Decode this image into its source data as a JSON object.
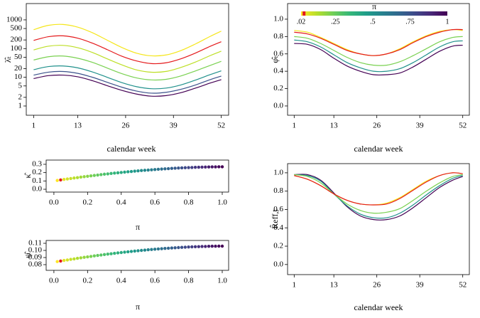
{
  "chart_data": [
    {
      "type": "line",
      "ylabel": "λ̂ₜ",
      "xlabel": "calendar week",
      "log": true,
      "x": [
        1,
        5,
        9,
        13,
        17,
        21,
        25,
        29,
        33,
        37,
        41,
        45,
        49,
        52
      ],
      "xlim": [
        -1,
        54
      ],
      "xticks": [
        1,
        13,
        26,
        39,
        52
      ],
      "ylim": [
        0.476,
        3700
      ],
      "yticks": [
        1,
        2,
        5,
        10,
        20,
        50,
        100,
        200,
        500,
        1000
      ],
      "series": [
        {
          "name": "0.02",
          "color": "#f5e61c",
          "values": [
            456,
            644,
            693,
            558,
            355,
            196,
            109,
            69,
            56,
            60,
            85,
            145,
            266,
            405
          ]
        },
        {
          "name": "0.04",
          "color": "#e41a1c",
          "values": [
            192,
            260,
            278,
            230,
            154,
            92,
            54,
            37,
            30,
            32,
            44,
            70,
            120,
            173
          ]
        },
        {
          "name": "0.1",
          "color": "#bddf26",
          "values": [
            90,
            121,
            129,
            107,
            73,
            44,
            27,
            18,
            15,
            16,
            22,
            34,
            57,
            81
          ]
        },
        {
          "name": "0.25",
          "color": "#7ad151",
          "values": [
            40,
            52,
            55,
            46,
            33,
            21,
            13.4,
            9.5,
            8.1,
            8.5,
            11.1,
            16.7,
            26,
            36
          ]
        },
        {
          "name": "0.5",
          "color": "#21918c",
          "values": [
            18.4,
            23.6,
            24.8,
            21.3,
            15.3,
            10,
            6.5,
            4.7,
            4.0,
            4.2,
            5.4,
            8.0,
            12.4,
            16.8
          ]
        },
        {
          "name": "0.75",
          "color": "#3b528b",
          "values": [
            11.9,
            15.1,
            15.9,
            13.7,
            10.0,
            6.7,
            4.5,
            3.3,
            2.8,
            3.0,
            3.8,
            5.4,
            8.3,
            11.0
          ]
        },
        {
          "name": "1",
          "color": "#440154",
          "values": [
            9.0,
            11.4,
            11.9,
            10.4,
            7.6,
            5.1,
            3.5,
            2.6,
            2.2,
            2.3,
            2.9,
            4.2,
            6.3,
            8.3
          ]
        }
      ]
    },
    {
      "type": "line",
      "ylabel": "φ̂ₜ",
      "xlabel": "calendar week",
      "x": [
        1,
        5,
        9,
        13,
        17,
        21,
        25,
        29,
        33,
        37,
        41,
        45,
        49,
        52
      ],
      "xlim": [
        -1,
        54
      ],
      "xticks": [
        1,
        13,
        26,
        39,
        52
      ],
      "ylim": [
        -0.107,
        1.18
      ],
      "yticks": [
        {
          "value": 0,
          "label": "0.0"
        },
        0.2,
        0.4,
        0.6,
        0.8,
        {
          "value": 1,
          "label": "1.0"
        }
      ],
      "series": [
        {
          "name": "0.02",
          "color": "#f5e61c",
          "values": [
            0.87,
            0.85,
            0.79,
            0.72,
            0.65,
            0.6,
            0.58,
            0.6,
            0.66,
            0.74,
            0.81,
            0.86,
            0.88,
            0.87
          ]
        },
        {
          "name": "0.25",
          "color": "#7ad151",
          "values": [
            0.8,
            0.78,
            0.72,
            0.64,
            0.56,
            0.5,
            0.47,
            0.47,
            0.51,
            0.58,
            0.66,
            0.74,
            0.79,
            0.8
          ]
        },
        {
          "name": "0.5",
          "color": "#21918c",
          "values": [
            0.76,
            0.74,
            0.68,
            0.59,
            0.5,
            0.44,
            0.4,
            0.4,
            0.43,
            0.5,
            0.59,
            0.68,
            0.74,
            0.75
          ]
        },
        {
          "name": "1",
          "color": "#440154",
          "values": [
            0.72,
            0.71,
            0.65,
            0.55,
            0.46,
            0.4,
            0.36,
            0.36,
            0.38,
            0.45,
            0.54,
            0.63,
            0.69,
            0.7
          ]
        },
        {
          "name": "0.04",
          "color": "#e41a1c",
          "values": [
            0.85,
            0.83,
            0.78,
            0.71,
            0.64,
            0.6,
            0.58,
            0.6,
            0.65,
            0.73,
            0.8,
            0.85,
            0.88,
            0.88
          ]
        }
      ],
      "colorbar": {
        "title": "π",
        "range": [
          0.02,
          1
        ],
        "colormap": [
          "#fde725",
          "#b5de2b",
          "#6ece58",
          "#35b779",
          "#1f9e89",
          "#26828e",
          "#31688e",
          "#3e4989",
          "#482878",
          "#440154"
        ],
        "ticks": [
          {
            "value": 0.02,
            "label": ".02"
          },
          {
            "value": 0.25,
            "label": ".25"
          },
          {
            "value": 0.5,
            "label": ".5"
          },
          {
            "value": 0.75,
            "label": ".75"
          },
          1
        ],
        "highlight": {
          "value": 0.04,
          "color": "#e41a1c"
        }
      }
    },
    {
      "type": "scatter",
      "ylabel": "κ̂",
      "xlabel": "π",
      "x": [
        0.02,
        0.04,
        0.06,
        0.08,
        0.1,
        0.12,
        0.14,
        0.16,
        0.18,
        0.2,
        0.22,
        0.24,
        0.26,
        0.28,
        0.3,
        0.32,
        0.34,
        0.36,
        0.38,
        0.4,
        0.42,
        0.44,
        0.46,
        0.48,
        0.5,
        0.52,
        0.54,
        0.56,
        0.58,
        0.6,
        0.62,
        0.64,
        0.66,
        0.68,
        0.7,
        0.72,
        0.74,
        0.76,
        0.78,
        0.8,
        0.82,
        0.84,
        0.86,
        0.88,
        0.9,
        0.92,
        0.94,
        0.96,
        0.98,
        1.0
      ],
      "values": [
        0.106,
        0.112,
        0.118,
        0.124,
        0.129,
        0.135,
        0.14,
        0.146,
        0.151,
        0.156,
        0.161,
        0.166,
        0.171,
        0.176,
        0.181,
        0.185,
        0.19,
        0.194,
        0.198,
        0.202,
        0.206,
        0.21,
        0.214,
        0.218,
        0.221,
        0.225,
        0.228,
        0.231,
        0.234,
        0.237,
        0.24,
        0.243,
        0.246,
        0.248,
        0.251,
        0.253,
        0.255,
        0.257,
        0.259,
        0.261,
        0.262,
        0.264,
        0.265,
        0.266,
        0.267,
        0.268,
        0.269,
        0.269,
        0.27,
        0.27
      ],
      "xlim": [
        -0.046,
        1.038
      ],
      "xticks": [
        {
          "value": 0,
          "label": "0.0"
        },
        0.2,
        0.4,
        0.6,
        0.8,
        {
          "value": 1,
          "label": "1.0"
        }
      ],
      "ylim": [
        -0.034,
        0.351
      ],
      "yticks": [
        {
          "value": 0,
          "label": "0.0"
        },
        0.1,
        0.2,
        0.3
      ],
      "colormap": [
        "#fde725",
        "#b5de2b",
        "#6ece58",
        "#35b779",
        "#1f9e89",
        "#26828e",
        "#31688e",
        "#3e4989",
        "#482878",
        "#440154"
      ],
      "crange": [
        0.02,
        1
      ],
      "highlight": {
        "index": 1,
        "color": "#e41a1c"
      }
    },
    {
      "type": "scatter",
      "ylabel": "ψ̂",
      "xlabel": "π",
      "x": [
        0.02,
        0.04,
        0.06,
        0.08,
        0.1,
        0.12,
        0.14,
        0.16,
        0.18,
        0.2,
        0.22,
        0.24,
        0.26,
        0.28,
        0.3,
        0.32,
        0.34,
        0.36,
        0.38,
        0.4,
        0.42,
        0.44,
        0.46,
        0.48,
        0.5,
        0.52,
        0.54,
        0.56,
        0.58,
        0.6,
        0.62,
        0.64,
        0.66,
        0.68,
        0.7,
        0.72,
        0.74,
        0.76,
        0.78,
        0.8,
        0.82,
        0.84,
        0.86,
        0.88,
        0.9,
        0.92,
        0.94,
        0.96,
        0.98,
        1.0
      ],
      "values": [
        0.0843,
        0.0851,
        0.0859,
        0.0866,
        0.0874,
        0.0881,
        0.0889,
        0.0896,
        0.0903,
        0.0909,
        0.0916,
        0.0923,
        0.0929,
        0.0935,
        0.0942,
        0.0948,
        0.0953,
        0.0959,
        0.0965,
        0.097,
        0.0976,
        0.0981,
        0.0986,
        0.0991,
        0.0995,
        0.1,
        0.1004,
        0.1009,
        0.1013,
        0.1017,
        0.1021,
        0.1024,
        0.1028,
        0.1031,
        0.1034,
        0.1037,
        0.104,
        0.1043,
        0.1045,
        0.1048,
        0.105,
        0.1052,
        0.1053,
        0.1055,
        0.1056,
        0.1058,
        0.1059,
        0.1059,
        0.106,
        0.106
      ],
      "xlim": [
        -0.046,
        1.038
      ],
      "xticks": [
        {
          "value": 0,
          "label": "0.0"
        },
        0.2,
        0.4,
        0.6,
        0.8,
        {
          "value": 1,
          "label": "1.0"
        }
      ],
      "ylim": [
        0.072,
        0.114
      ],
      "yticks": [
        0.08,
        0.09,
        {
          "value": 0.1,
          "label": "0.10"
        },
        0.11
      ],
      "colormap": [
        "#fde725",
        "#b5de2b",
        "#6ece58",
        "#35b779",
        "#1f9e89",
        "#26828e",
        "#31688e",
        "#3e4989",
        "#482878",
        "#440154"
      ],
      "crange": [
        0.02,
        1
      ],
      "highlight": {
        "index": 1,
        "color": "#e41a1c"
      }
    },
    {
      "type": "line",
      "ylabel": "R̂eff,t",
      "xlabel": "calendar week",
      "x": [
        1,
        5,
        9,
        13,
        17,
        21,
        25,
        29,
        33,
        37,
        41,
        45,
        49,
        52
      ],
      "xlim": [
        -1,
        54
      ],
      "xticks": [
        1,
        13,
        26,
        39,
        52
      ],
      "ylim": [
        -0.11,
        1.1
      ],
      "yticks": [
        {
          "value": 0,
          "label": "0.0"
        },
        0.2,
        0.4,
        0.6,
        0.8,
        {
          "value": 1,
          "label": "1.0"
        }
      ],
      "series": [
        {
          "name": "1",
          "color": "#440154",
          "values": [
            0.98,
            0.98,
            0.92,
            0.78,
            0.63,
            0.53,
            0.49,
            0.49,
            0.53,
            0.62,
            0.73,
            0.84,
            0.92,
            0.96
          ]
        },
        {
          "name": "0.5",
          "color": "#21918c",
          "values": [
            0.98,
            0.97,
            0.91,
            0.77,
            0.64,
            0.55,
            0.51,
            0.51,
            0.56,
            0.65,
            0.76,
            0.86,
            0.94,
            0.97
          ]
        },
        {
          "name": "0.25",
          "color": "#7ad151",
          "values": [
            0.98,
            0.96,
            0.89,
            0.77,
            0.66,
            0.59,
            0.56,
            0.57,
            0.61,
            0.7,
            0.8,
            0.89,
            0.96,
            0.98
          ]
        },
        {
          "name": "0.02",
          "color": "#f5e61c",
          "values": [
            0.97,
            0.93,
            0.86,
            0.77,
            0.7,
            0.66,
            0.65,
            0.67,
            0.73,
            0.82,
            0.91,
            0.97,
            1.0,
            0.99
          ]
        },
        {
          "name": "0.04",
          "color": "#e41a1c",
          "values": [
            0.97,
            0.93,
            0.86,
            0.77,
            0.7,
            0.66,
            0.65,
            0.66,
            0.72,
            0.81,
            0.9,
            0.97,
            1.0,
            0.99
          ]
        }
      ]
    }
  ]
}
